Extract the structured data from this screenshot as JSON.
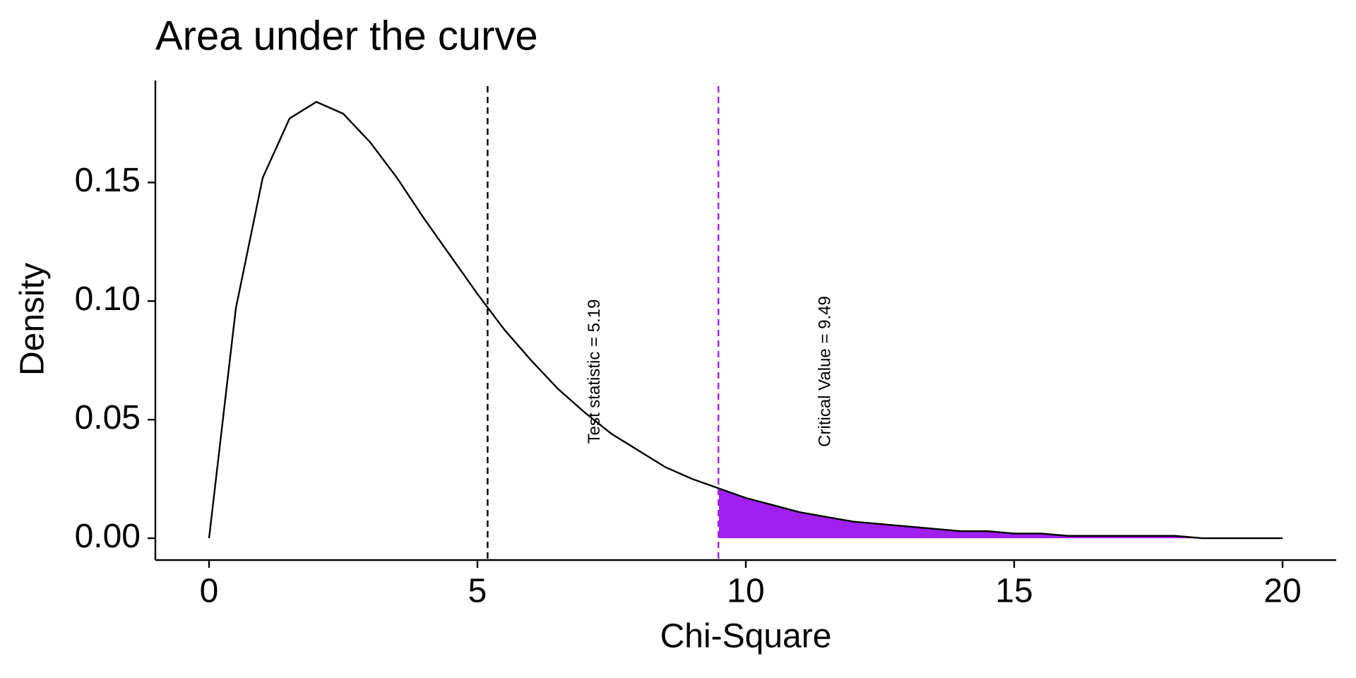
{
  "chart_data": {
    "type": "area-curve",
    "title": "Area under the curve",
    "x_label": "Chi-Square",
    "y_label": "Density",
    "x": [
      0,
      0.5,
      1,
      1.5,
      2,
      2.5,
      3,
      3.5,
      4,
      4.5,
      5,
      5.5,
      6,
      6.5,
      7,
      7.5,
      8,
      8.5,
      9,
      9.5,
      10,
      10.5,
      11,
      11.5,
      12,
      12.5,
      13,
      13.5,
      14,
      14.5,
      15,
      15.5,
      16,
      16.5,
      17,
      17.5,
      18,
      18.5,
      19,
      19.5,
      20
    ],
    "series": [
      {
        "color": "#000000",
        "values": [
          0,
          0.097,
          0.152,
          0.177,
          0.184,
          0.179,
          0.167,
          0.152,
          0.135,
          0.119,
          0.103,
          0.088,
          0.075,
          0.063,
          0.053,
          0.044,
          0.037,
          0.03,
          0.025,
          0.021,
          0.017,
          0.014,
          0.011,
          0.009,
          0.007,
          0.006,
          0.005,
          0.004,
          0.003,
          0.003,
          0.002,
          0.002,
          0.001,
          0.001,
          0.001,
          0.001,
          0.001,
          0,
          0,
          0,
          0
        ]
      }
    ],
    "vlines": [
      {
        "x": 5.19,
        "label": "Test statistic = 5.19",
        "color": "#000000"
      },
      {
        "x": 9.49,
        "label": "Critical Value = 9.49",
        "color": "#a020f0",
        "shade": "#a020f0"
      }
    ],
    "xlim": [
      -1,
      21
    ],
    "ylim": [
      -0.0092,
      0.193
    ],
    "xticks": [
      0,
      5,
      10,
      15,
      20
    ],
    "yticks": [
      {
        "value": 0,
        "label": "0.00"
      },
      0.05,
      {
        "value": 0.1,
        "label": "0.10"
      },
      0.15
    ],
    "grid": false
  }
}
